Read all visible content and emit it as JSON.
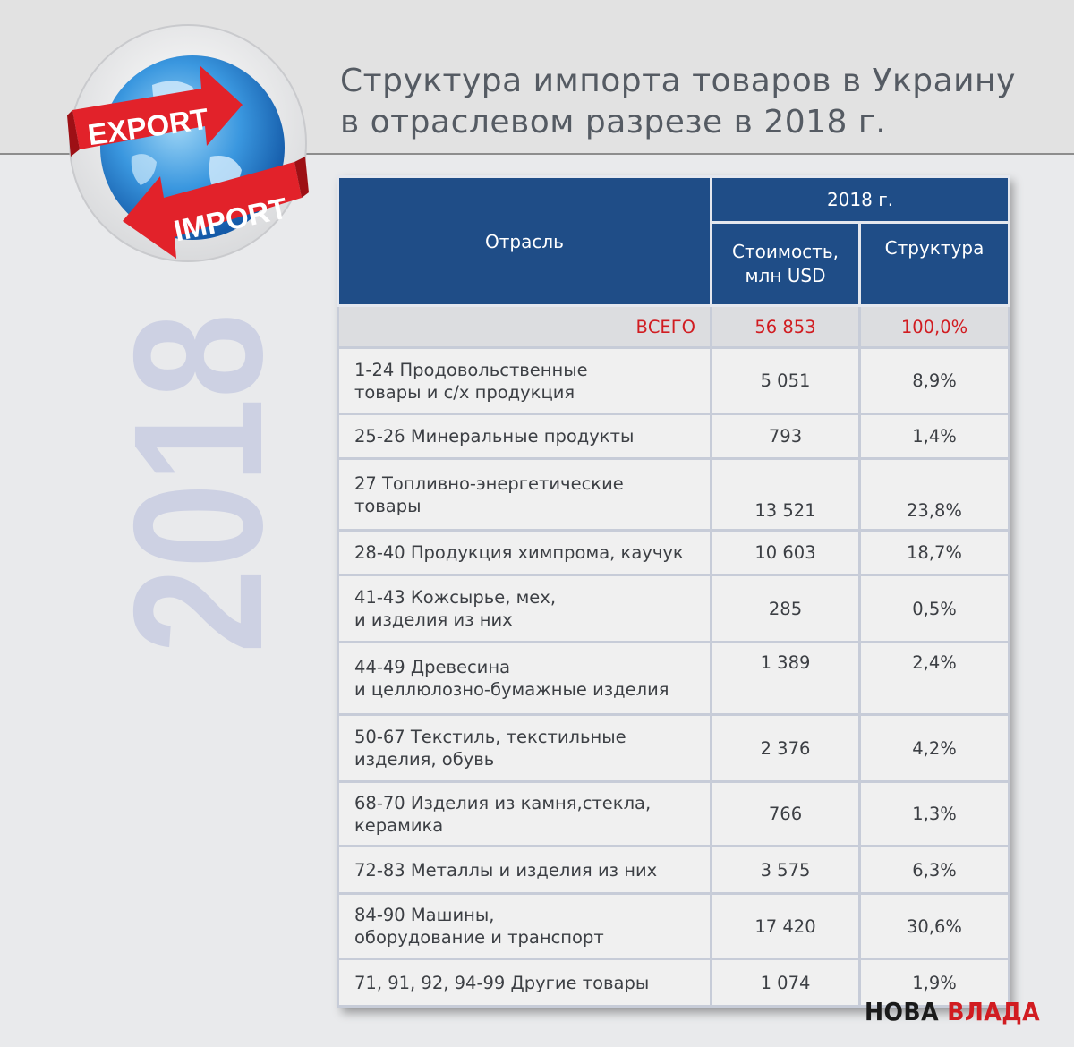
{
  "header": {
    "title_line1": "Структура импорта товаров в Украину",
    "title_line2": "в отраслевом разрезе в 2018 г."
  },
  "logo": {
    "export_label": "EXPORT",
    "import_label": "IMPORT",
    "icon": "globe-with-arrows-icon"
  },
  "year_watermark": "2018",
  "brand": {
    "part1": "НОВА ",
    "part2": "ВЛАДА"
  },
  "colors": {
    "header_bg": "#1f4d87",
    "total_text": "#d11c21",
    "year_fill": "#cdd1e3",
    "arrow_red": "#e2222a"
  },
  "chart_data": {
    "type": "table",
    "title": "Структура импорта товаров в Украину в отраслевом разрезе в 2018 г.",
    "columns": {
      "sector": "Отрасль",
      "year": "2018 г.",
      "value_line1": "Стоимость,",
      "value_line2": "млн USD",
      "share": "Структура"
    },
    "total": {
      "label": "ВСЕГО",
      "value": "56 853",
      "share": "100,0%"
    },
    "rows": [
      {
        "line1": "1-24 Продовольственные",
        "line2": "товары и с/х продукция",
        "value": "5 051",
        "share": "8,9%"
      },
      {
        "line1": "25-26 Минеральные продукты",
        "line2": "",
        "value": "793",
        "share": "1,4%"
      },
      {
        "line1": "27 Топливно-энергетические",
        "line2": "товары",
        "value": "13 521",
        "share": "23,8%"
      },
      {
        "line1": "28-40 Продукция химпрома, каучук",
        "line2": "",
        "value": "10 603",
        "share": "18,7%"
      },
      {
        "line1": "41-43 Кожсырье, мех,",
        "line2": "и изделия из них",
        "value": "285",
        "share": "0,5%"
      },
      {
        "line1": "44-49 Древесина",
        "line2": "и целлюлозно-бумажные изделия",
        "value": "1 389",
        "share": "2,4%"
      },
      {
        "line1": "50-67 Текстиль, текстильные",
        "line2": "изделия, обувь",
        "value": "2 376",
        "share": "4,2%"
      },
      {
        "line1": "68-70 Изделия из камня,стекла,",
        "line2": "керамика",
        "value": "766",
        "share": "1,3%"
      },
      {
        "line1": "72-83 Металлы и изделия из них",
        "line2": "",
        "value": "3 575",
        "share": "6,3%"
      },
      {
        "line1": "84-90 Машины,",
        "line2": "оборудование и транспорт",
        "value": "17 420",
        "share": "30,6%"
      },
      {
        "line1": "71, 91, 92, 94-99 Другие товары",
        "line2": "",
        "value": "1 074",
        "share": "1,9%"
      }
    ]
  }
}
